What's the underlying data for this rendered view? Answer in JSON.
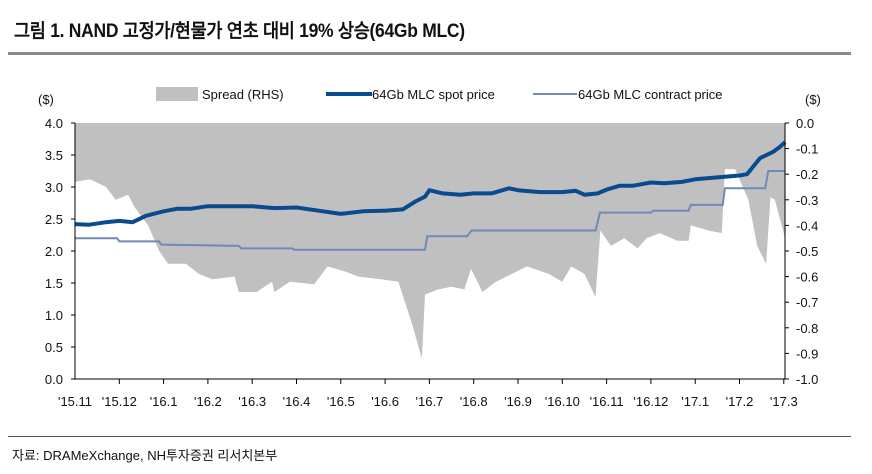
{
  "title": "그림 1. NAND 고정가/현물가 연초 대비 19% 상승(64Gb MLC)",
  "source": "자료: DRAMeXchange, NH투자증권 리서치본부",
  "chart_data": {
    "type": "line",
    "title": "그림 1. NAND 고정가/현물가 연초 대비 19% 상승(64Gb MLC)",
    "ylabel_left": "($)",
    "ylabel_right": "($)",
    "ylim_left": [
      0,
      4.0
    ],
    "ylim_right": [
      -1.0,
      0.0
    ],
    "yticks_left": [
      "4.0",
      "3.5",
      "3.0",
      "2.5",
      "2.0",
      "1.5",
      "1.0",
      "0.5",
      "0.0"
    ],
    "yticks_right": [
      "0.0",
      "-0.1",
      "-0.2",
      "-0.3",
      "-0.4",
      "-0.5",
      "-0.6",
      "-0.7",
      "-0.8",
      "-0.9",
      "-1.0"
    ],
    "categories": [
      "'15.11",
      "'15.12",
      "'16.1",
      "'16.2",
      "'16.3",
      "'16.4",
      "'16.5",
      "'16.6",
      "'16.7",
      "'16.8",
      "'16.9",
      "'16.10",
      "'16.11",
      "'16.12",
      "'17.1",
      "'17.2",
      "'17.3"
    ],
    "x_note": "x values are month index from '15.11 = 0",
    "legend_position": "top",
    "colors": {
      "spread": "#c0c0c0",
      "spot": "#0a4a8f",
      "contract": "#7089b8"
    },
    "series": [
      {
        "name": "Spread (RHS)",
        "axis": "right",
        "kind": "area",
        "points": [
          [
            0,
            -0.23
          ],
          [
            0.34,
            -0.22
          ],
          [
            0.7,
            -0.25
          ],
          [
            0.92,
            -0.3
          ],
          [
            1.2,
            -0.28
          ],
          [
            1.35,
            -0.33
          ],
          [
            1.65,
            -0.4
          ],
          [
            1.9,
            -0.5
          ],
          [
            2.1,
            -0.55
          ],
          [
            2.5,
            -0.55
          ],
          [
            2.8,
            -0.59
          ],
          [
            3.1,
            -0.61
          ],
          [
            3.6,
            -0.6
          ],
          [
            3.7,
            -0.66
          ],
          [
            4.1,
            -0.66
          ],
          [
            4.45,
            -0.62
          ],
          [
            4.5,
            -0.66
          ],
          [
            4.85,
            -0.62
          ],
          [
            5.4,
            -0.63
          ],
          [
            5.7,
            -0.56
          ],
          [
            6.1,
            -0.58
          ],
          [
            6.4,
            -0.6
          ],
          [
            6.9,
            -0.61
          ],
          [
            7.3,
            -0.62
          ],
          [
            7.6,
            -0.78
          ],
          [
            7.83,
            -0.92
          ],
          [
            7.9,
            -0.67
          ],
          [
            8.2,
            -0.65
          ],
          [
            8.5,
            -0.64
          ],
          [
            8.79,
            -0.65
          ],
          [
            8.94,
            -0.57
          ],
          [
            9.2,
            -0.66
          ],
          [
            9.5,
            -0.62
          ],
          [
            10.2,
            -0.56
          ],
          [
            10.7,
            -0.59
          ],
          [
            11.0,
            -0.62
          ],
          [
            11.2,
            -0.56
          ],
          [
            11.5,
            -0.59
          ],
          [
            11.75,
            -0.68
          ],
          [
            11.86,
            -0.42
          ],
          [
            12.1,
            -0.48
          ],
          [
            12.4,
            -0.45
          ],
          [
            12.7,
            -0.49
          ],
          [
            12.9,
            -0.45
          ],
          [
            13.2,
            -0.43
          ],
          [
            13.6,
            -0.46
          ],
          [
            13.85,
            -0.46
          ],
          [
            13.9,
            -0.4
          ],
          [
            14.3,
            -0.42
          ],
          [
            14.6,
            -0.43
          ],
          [
            14.67,
            -0.18
          ],
          [
            14.9,
            -0.18
          ],
          [
            15.2,
            -0.3
          ],
          [
            15.4,
            -0.48
          ],
          [
            15.6,
            -0.55
          ],
          [
            15.7,
            -0.29
          ],
          [
            15.8,
            -0.3
          ],
          [
            16.03,
            -0.45
          ]
        ]
      },
      {
        "name": "64Gb MLC spot price",
        "axis": "left",
        "kind": "line",
        "points": [
          [
            0,
            2.42
          ],
          [
            0.3,
            2.41
          ],
          [
            0.7,
            2.45
          ],
          [
            1,
            2.47
          ],
          [
            1.3,
            2.45
          ],
          [
            1.6,
            2.55
          ],
          [
            2,
            2.62
          ],
          [
            2.3,
            2.66
          ],
          [
            2.6,
            2.66
          ],
          [
            3,
            2.7
          ],
          [
            3.5,
            2.7
          ],
          [
            4,
            2.7
          ],
          [
            4.5,
            2.67
          ],
          [
            5,
            2.68
          ],
          [
            5.5,
            2.63
          ],
          [
            6,
            2.58
          ],
          [
            6.5,
            2.62
          ],
          [
            7,
            2.63
          ],
          [
            7.4,
            2.65
          ],
          [
            7.7,
            2.78
          ],
          [
            7.9,
            2.85
          ],
          [
            8,
            2.95
          ],
          [
            8.3,
            2.9
          ],
          [
            8.7,
            2.88
          ],
          [
            9,
            2.9
          ],
          [
            9.4,
            2.9
          ],
          [
            9.8,
            2.98
          ],
          [
            10,
            2.95
          ],
          [
            10.5,
            2.92
          ],
          [
            11,
            2.92
          ],
          [
            11.3,
            2.94
          ],
          [
            11.5,
            2.88
          ],
          [
            11.8,
            2.9
          ],
          [
            12,
            2.96
          ],
          [
            12.3,
            3.02
          ],
          [
            12.6,
            3.02
          ],
          [
            13,
            3.07
          ],
          [
            13.3,
            3.06
          ],
          [
            13.7,
            3.08
          ],
          [
            14,
            3.12
          ],
          [
            14.5,
            3.15
          ],
          [
            15,
            3.18
          ],
          [
            15.17,
            3.2
          ],
          [
            15.46,
            3.45
          ],
          [
            15.76,
            3.55
          ],
          [
            15.9,
            3.62
          ],
          [
            16.03,
            3.7
          ]
        ]
      },
      {
        "name": "64Gb MLC contract price",
        "axis": "left",
        "kind": "step",
        "points": [
          [
            0,
            2.2
          ],
          [
            0.95,
            2.2
          ],
          [
            1.0,
            2.15
          ],
          [
            1.9,
            2.15
          ],
          [
            1.95,
            2.1
          ],
          [
            3.7,
            2.08
          ],
          [
            3.75,
            2.04
          ],
          [
            4.9,
            2.04
          ],
          [
            4.95,
            2.02
          ],
          [
            7.9,
            2.02
          ],
          [
            7.95,
            2.23
          ],
          [
            8.85,
            2.23
          ],
          [
            8.95,
            2.32
          ],
          [
            11.75,
            2.32
          ],
          [
            11.85,
            2.6
          ],
          [
            13.0,
            2.6
          ],
          [
            13.05,
            2.63
          ],
          [
            13.85,
            2.63
          ],
          [
            13.9,
            2.72
          ],
          [
            14.62,
            2.72
          ],
          [
            14.67,
            2.98
          ],
          [
            15.58,
            2.98
          ],
          [
            15.65,
            3.25
          ],
          [
            16.03,
            3.25
          ]
        ]
      }
    ]
  }
}
